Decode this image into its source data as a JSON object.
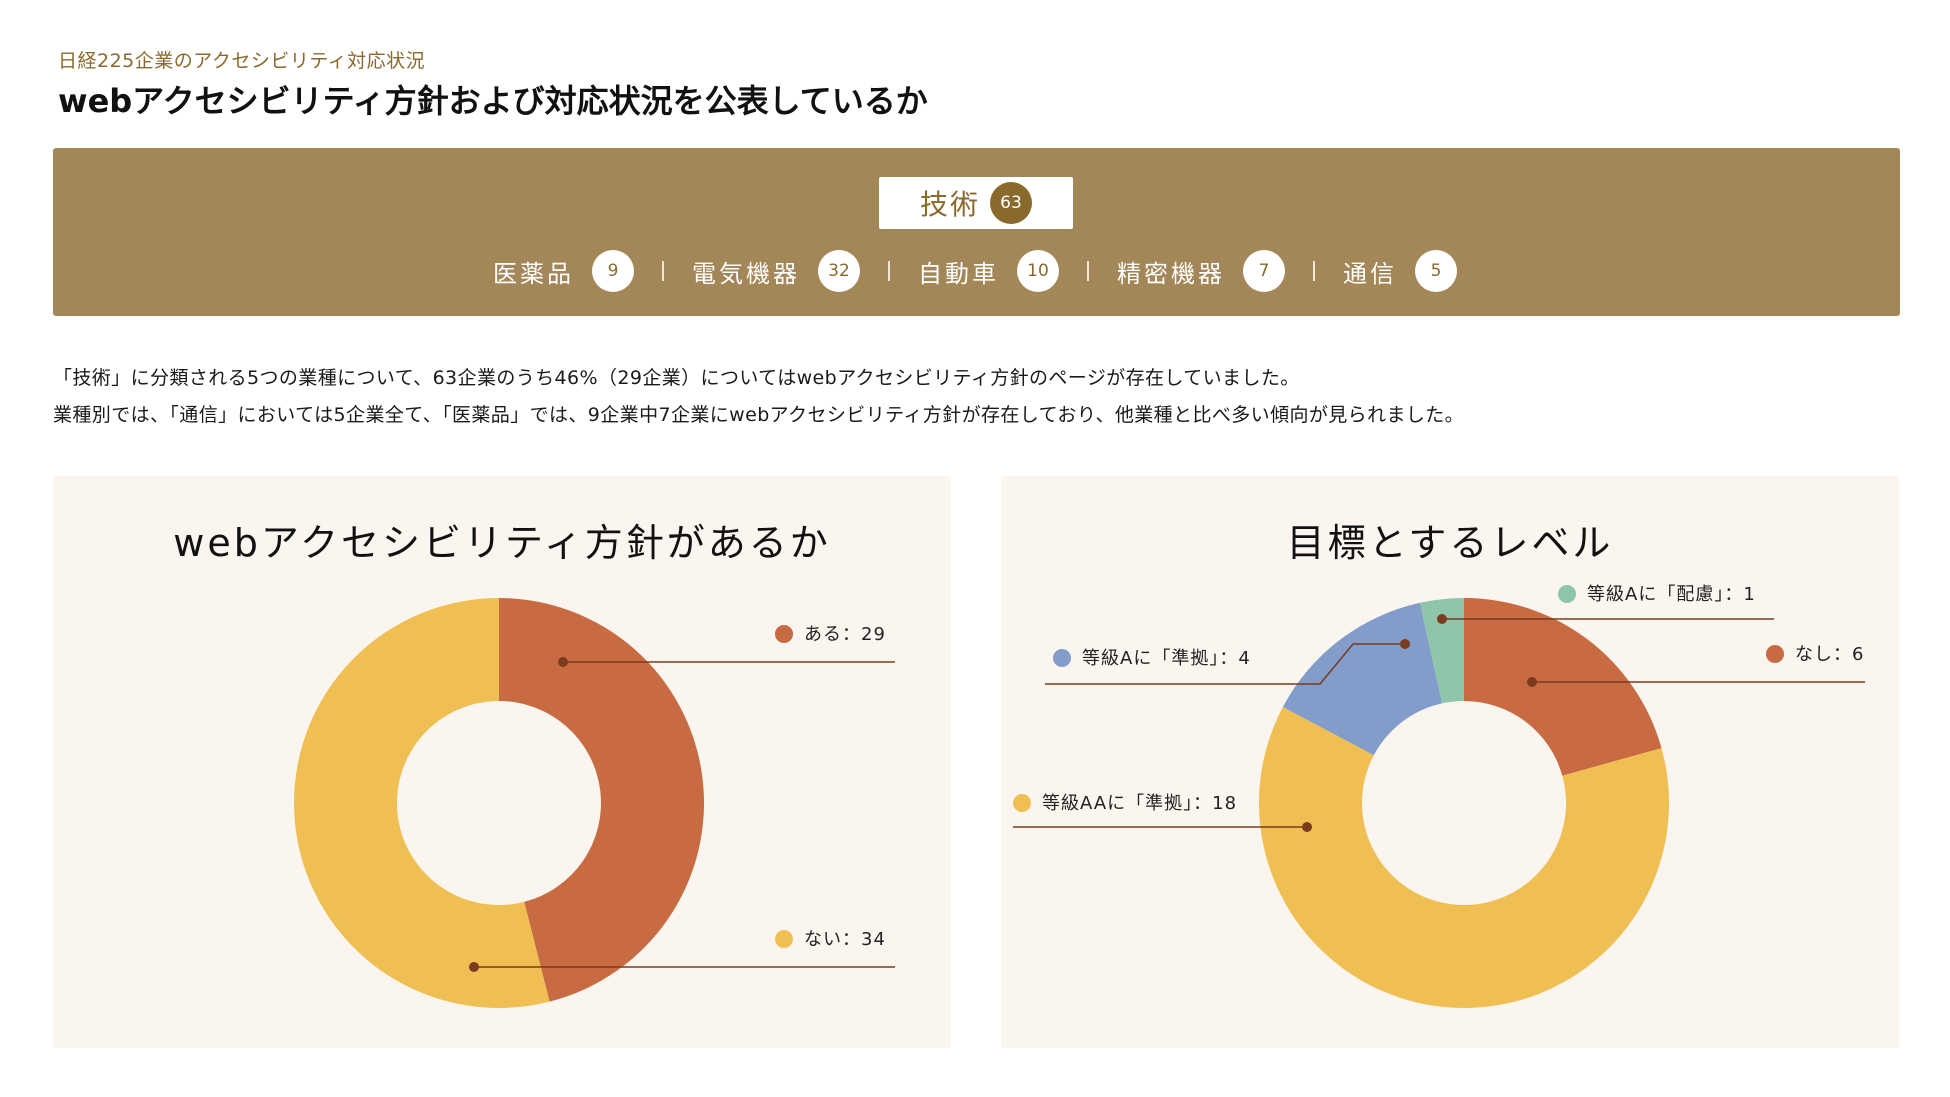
{
  "header": {
    "kicker": "日経225企業のアクセシビリティ対応状況",
    "title": "webアクセシビリティ方針および対応状況を公表しているか"
  },
  "category": {
    "label": "技術",
    "count": "63",
    "industries": [
      {
        "label": "医薬品",
        "count": "9"
      },
      {
        "label": "電気機器",
        "count": "32"
      },
      {
        "label": "自動車",
        "count": "10"
      },
      {
        "label": "精密機器",
        "count": "7"
      },
      {
        "label": "通信",
        "count": "5"
      }
    ]
  },
  "description": {
    "line1": "「技術」に分類される5つの業種について、63企業のうち46%（29企業）についてはwebアクセシビリティ方針のページが存在していました。",
    "line2": "業種別では、「通信」においては5企業全て、「医薬品」では、9企業中7企業にwebアクセシビリティ方針が存在しており、他業種と比べ多い傾向が見られました。"
  },
  "colors": {
    "brand": "#a48758",
    "brand_dark": "#8a6a2c",
    "orange": "#c86a42",
    "yellow": "#efbf54",
    "blue": "#829dca",
    "green": "#8fc5ab",
    "leader": "#7a3b1e"
  },
  "chart_data": [
    {
      "type": "pie",
      "title": "webアクセシビリティ方針があるか",
      "series": [
        {
          "name": "ある",
          "value": 29,
          "label": "ある：29",
          "color": "#c86a42"
        },
        {
          "name": "ない",
          "value": 34,
          "label": "ない：34",
          "color": "#efbf54"
        }
      ]
    },
    {
      "type": "pie",
      "title": "目標とするレベル",
      "series": [
        {
          "name": "なし",
          "value": 6,
          "label": "なし：6",
          "color": "#c86a42"
        },
        {
          "name": "等級AAに「準拠」",
          "value": 18,
          "label": "等級AAに「準拠」：18",
          "color": "#efbf54"
        },
        {
          "name": "等級Aに「準拠」",
          "value": 4,
          "label": "等級Aに「準拠」：4",
          "color": "#829dca"
        },
        {
          "name": "等級Aに「配慮」",
          "value": 1,
          "label": "等級Aに「配慮」：1",
          "color": "#8fc5ab"
        }
      ]
    }
  ]
}
